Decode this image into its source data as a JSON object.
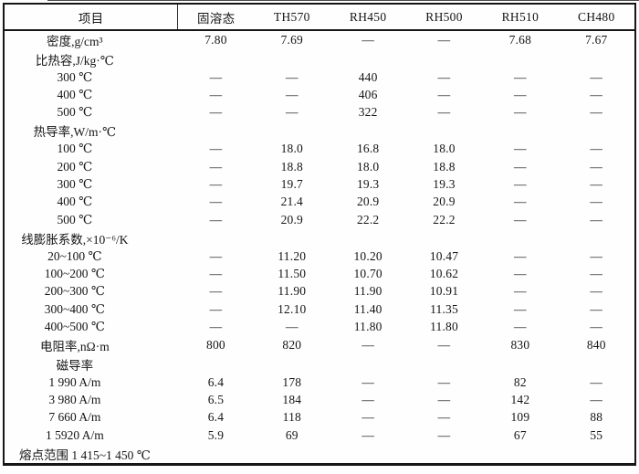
{
  "colors": {
    "border": "#161616",
    "text": "#151515",
    "background": "#fefefe"
  },
  "table": {
    "columns": [
      "项目",
      "固溶态",
      "TH570",
      "RH450",
      "RH500",
      "RH510",
      "CH480"
    ],
    "rows": [
      {
        "type": "item",
        "label": "密度,g/cm³",
        "values": [
          "7.80",
          "7.69",
          "—",
          "—",
          "7.68",
          "7.67"
        ]
      },
      {
        "type": "group",
        "label": "比热容,J/kg·℃",
        "values": [
          "",
          "",
          "",
          "",
          "",
          ""
        ]
      },
      {
        "type": "item",
        "label": "300 ℃",
        "values": [
          "—",
          "—",
          "440",
          "—",
          "—",
          "—"
        ]
      },
      {
        "type": "item",
        "label": "400 ℃",
        "values": [
          "—",
          "—",
          "406",
          "—",
          "—",
          "—"
        ]
      },
      {
        "type": "item",
        "label": "500 ℃",
        "values": [
          "—",
          "—",
          "322",
          "—",
          "—",
          "—"
        ]
      },
      {
        "type": "group",
        "label": "热导率,W/m·℃",
        "values": [
          "",
          "",
          "",
          "",
          "",
          ""
        ]
      },
      {
        "type": "item",
        "label": "100 ℃",
        "values": [
          "—",
          "18.0",
          "16.8",
          "18.0",
          "—",
          "—"
        ]
      },
      {
        "type": "item",
        "label": "200 ℃",
        "values": [
          "—",
          "18.8",
          "18.0",
          "18.8",
          "—",
          "—"
        ]
      },
      {
        "type": "item",
        "label": "300 ℃",
        "values": [
          "—",
          "19.7",
          "19.3",
          "19.3",
          "—",
          "—"
        ]
      },
      {
        "type": "item",
        "label": "400 ℃",
        "values": [
          "—",
          "21.4",
          "20.9",
          "20.9",
          "—",
          "—"
        ]
      },
      {
        "type": "item",
        "label": "500 ℃",
        "values": [
          "—",
          "20.9",
          "22.2",
          "22.2",
          "—",
          "—"
        ]
      },
      {
        "type": "group",
        "label": "线膨胀系数,×10⁻⁶/K",
        "values": [
          "",
          "",
          "",
          "",
          "",
          ""
        ]
      },
      {
        "type": "item",
        "label": "20~100 ℃",
        "values": [
          "—",
          "11.20",
          "10.20",
          "10.47",
          "—",
          "—"
        ]
      },
      {
        "type": "item",
        "label": "100~200 ℃",
        "values": [
          "—",
          "11.50",
          "10.70",
          "10.62",
          "—",
          "—"
        ]
      },
      {
        "type": "item",
        "label": "200~300 ℃",
        "values": [
          "—",
          "11.90",
          "11.90",
          "10.91",
          "—",
          "—"
        ]
      },
      {
        "type": "item",
        "label": "300~400 ℃",
        "values": [
          "—",
          "12.10",
          "11.40",
          "11.35",
          "—",
          "—"
        ]
      },
      {
        "type": "item",
        "label": "400~500 ℃",
        "values": [
          "—",
          "—",
          "11.80",
          "11.80",
          "—",
          "—"
        ]
      },
      {
        "type": "item",
        "label": "电阻率,nΩ·m",
        "values": [
          "800",
          "820",
          "—",
          "—",
          "830",
          "840"
        ]
      },
      {
        "type": "group",
        "label": "磁导率",
        "values": [
          "",
          "",
          "",
          "",
          "",
          ""
        ]
      },
      {
        "type": "item",
        "label": "1 990 A/m",
        "values": [
          "6.4",
          "178",
          "—",
          "—",
          "82",
          "—"
        ]
      },
      {
        "type": "item",
        "label": "3 980 A/m",
        "values": [
          "6.5",
          "184",
          "—",
          "—",
          "142",
          "—"
        ]
      },
      {
        "type": "item",
        "label": "7 660 A/m",
        "values": [
          "6.4",
          "118",
          "—",
          "—",
          "109",
          "88"
        ]
      },
      {
        "type": "item",
        "label": "1 5920 A/m",
        "values": [
          "5.9",
          "69",
          "—",
          "—",
          "67",
          "55"
        ]
      },
      {
        "type": "footer",
        "label": "熔点范围 1 415~1 450 ℃"
      }
    ]
  }
}
